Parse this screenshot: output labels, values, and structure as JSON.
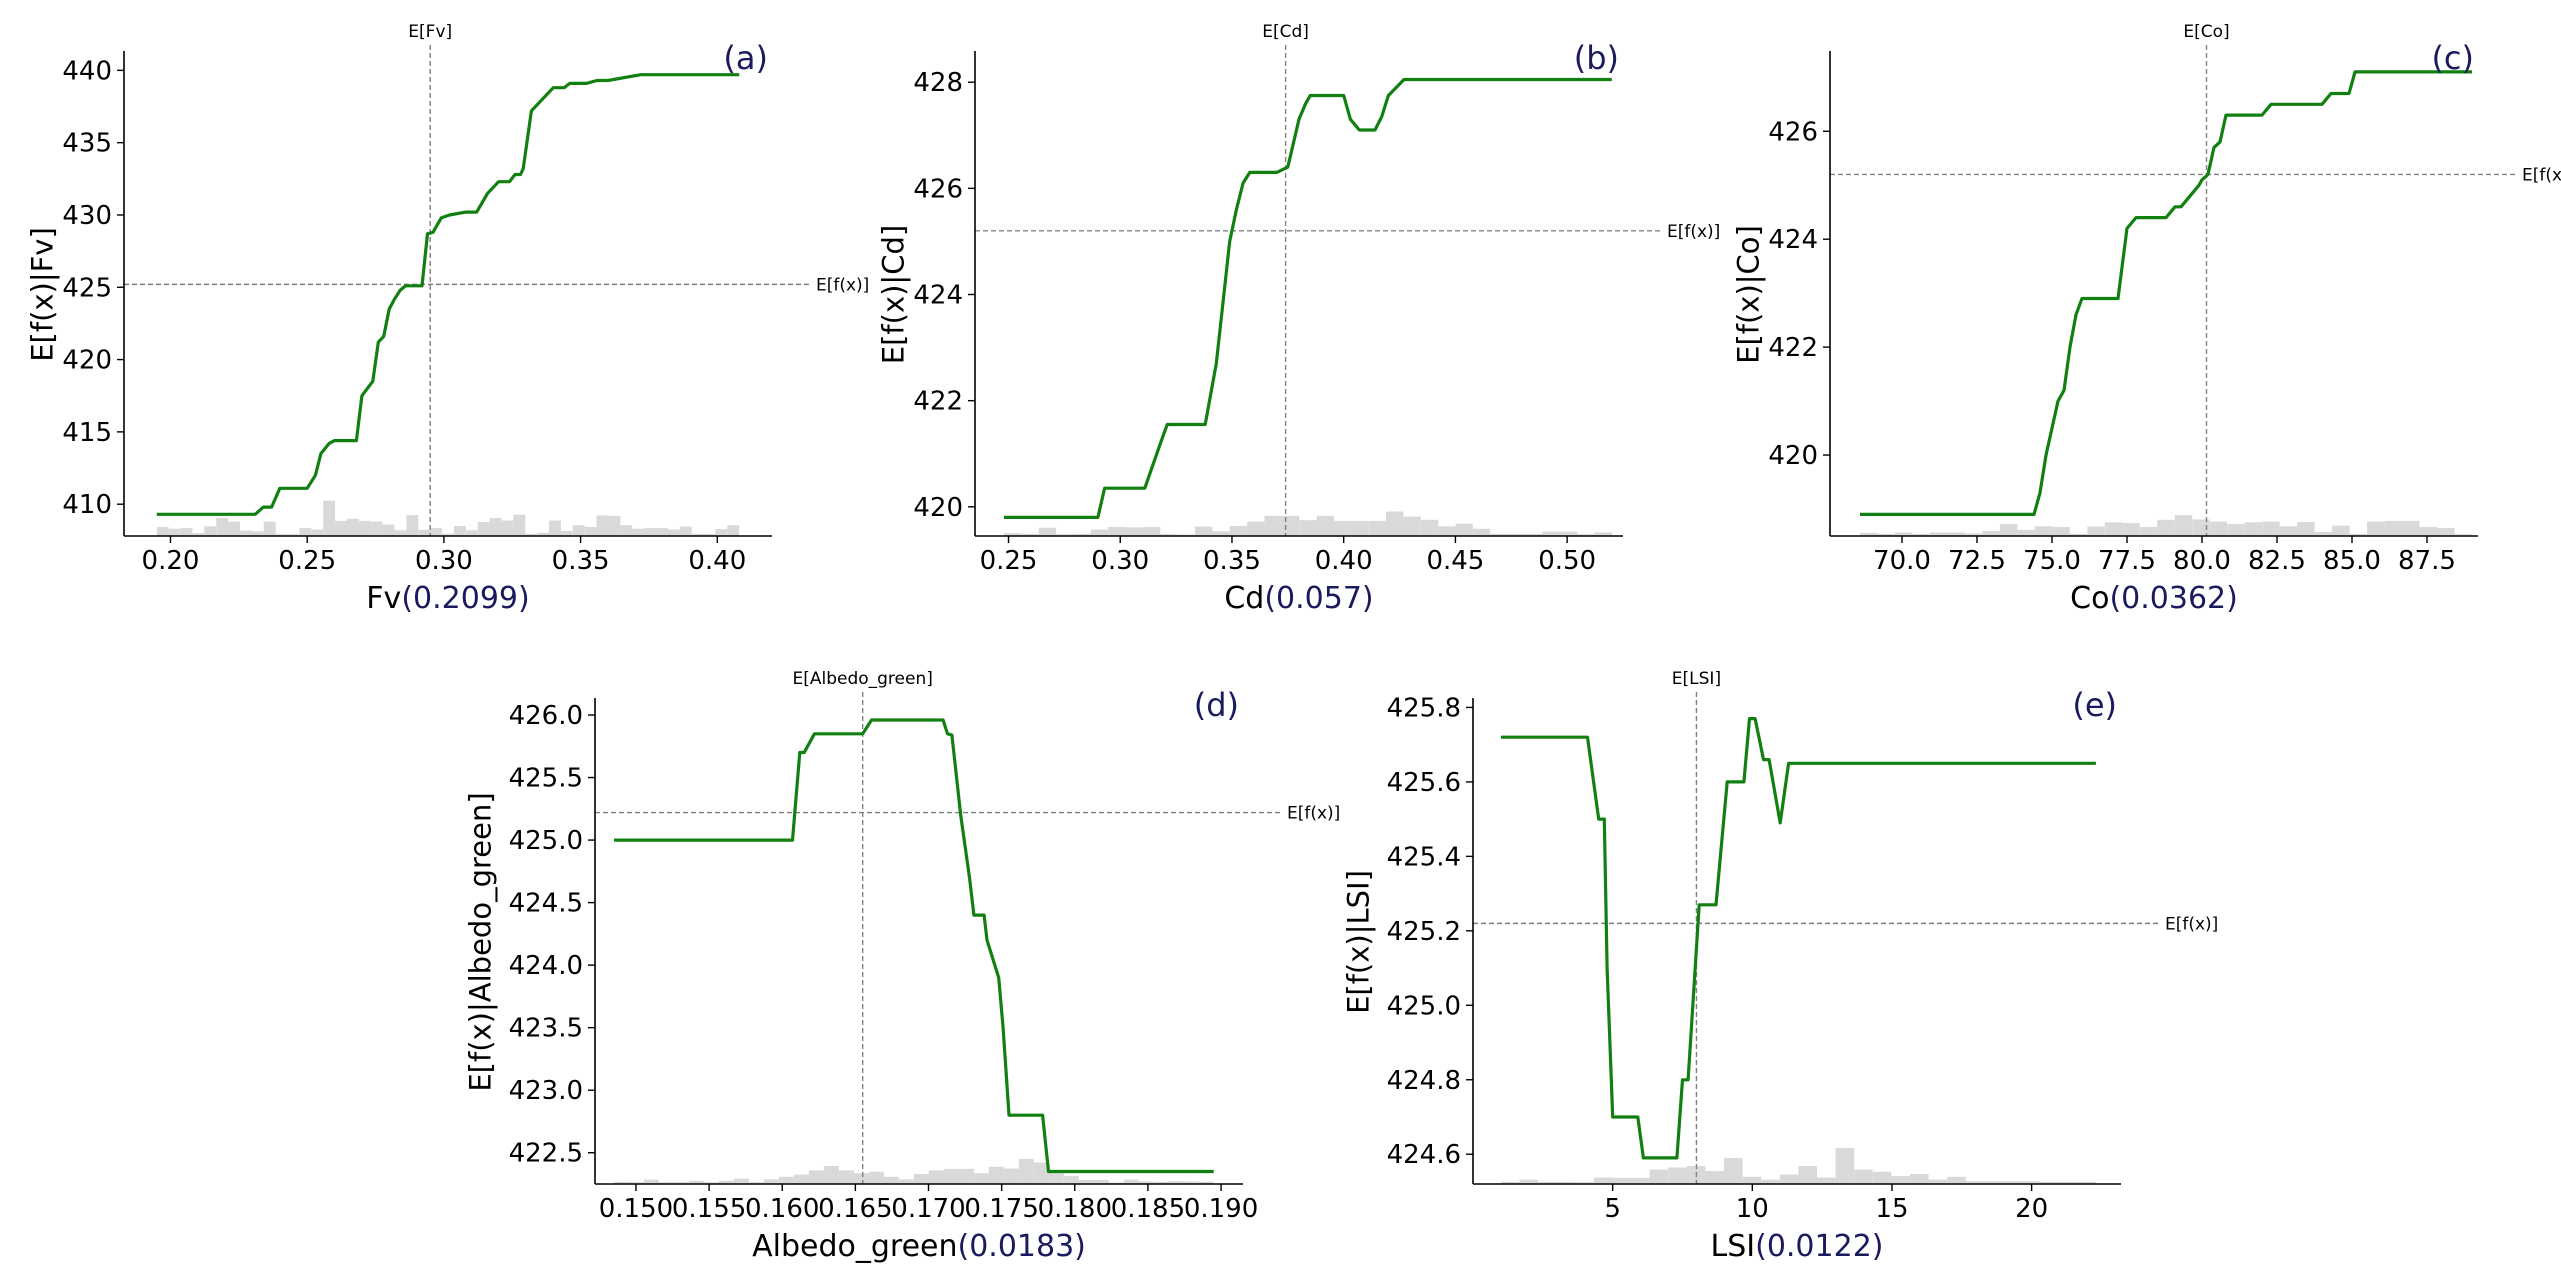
{
  "colors": {
    "line": "#118011",
    "hist": "#d9d9d9",
    "axis": "#000000",
    "ref": "#808080",
    "feature_label": "#000000",
    "importance": "#1a1a5e",
    "panel_label": "#1a1a5e"
  },
  "chart_data": [
    {
      "type": "line",
      "panel_label": "(a)",
      "feature": "Fv",
      "importance": "(0.2099)",
      "ylabel": "E[f(x)|Fv]",
      "expected_x_label": "E[Fv]",
      "expected_y_label": "E[f(x)]",
      "expected_x": 0.295,
      "expected_y": 425.2,
      "xlim": [
        0.183,
        0.42
      ],
      "ylim": [
        407.8,
        441.2
      ],
      "xticks": [
        0.2,
        0.25,
        0.3,
        0.35,
        0.4
      ],
      "xtick_labels": [
        "0.20",
        "0.25",
        "0.30",
        "0.35",
        "0.40"
      ],
      "yticks": [
        410,
        415,
        420,
        425,
        430,
        435,
        440
      ],
      "ytick_labels": [
        "410",
        "415",
        "420",
        "425",
        "430",
        "435",
        "440"
      ],
      "x": [
        0.195,
        0.231,
        0.234,
        0.237,
        0.24,
        0.25,
        0.253,
        0.255,
        0.258,
        0.26,
        0.268,
        0.27,
        0.274,
        0.276,
        0.278,
        0.28,
        0.282,
        0.284,
        0.286,
        0.292,
        0.294,
        0.296,
        0.299,
        0.302,
        0.308,
        0.312,
        0.316,
        0.32,
        0.324,
        0.326,
        0.328,
        0.329,
        0.332,
        0.336,
        0.34,
        0.344,
        0.346,
        0.352,
        0.356,
        0.36,
        0.372,
        0.408
      ],
      "values": [
        409.3,
        409.3,
        409.8,
        409.8,
        411.1,
        411.1,
        412.0,
        413.5,
        414.2,
        414.4,
        414.4,
        417.5,
        418.5,
        421.2,
        421.6,
        423.5,
        424.2,
        424.8,
        425.1,
        425.1,
        428.7,
        428.8,
        429.8,
        430.0,
        430.2,
        430.2,
        431.5,
        432.3,
        432.3,
        432.8,
        432.8,
        433.2,
        437.2,
        438.0,
        438.8,
        438.8,
        439.1,
        439.1,
        439.3,
        439.3,
        439.7,
        439.7
      ],
      "hist": [
        0.25,
        0.2,
        0.22,
        0.08,
        0.27,
        0.5,
        0.4,
        0.15,
        0.13,
        0.4,
        0.05,
        0.05,
        0.22,
        0.18,
        0.98,
        0.42,
        0.48,
        0.42,
        0.4,
        0.32,
        0.16,
        0.58,
        0.17,
        0.22,
        0.06,
        0.28,
        0.16,
        0.39,
        0.5,
        0.43,
        0.59,
        0.06,
        0.09,
        0.43,
        0.14,
        0.3,
        0.25,
        0.57,
        0.56,
        0.3,
        0.2,
        0.22,
        0.22,
        0.18,
        0.26,
        0.06,
        0.06,
        0.19,
        0.3
      ]
    },
    {
      "type": "line",
      "panel_label": "(b)",
      "feature": "Cd",
      "importance": "(0.057)",
      "ylabel": "E[f(x)|Cd]",
      "expected_x_label": "E[Cd]",
      "expected_y_label": "E[f(x)]",
      "expected_x": 0.374,
      "expected_y": 425.2,
      "xlim": [
        0.235,
        0.525
      ],
      "ylim": [
        419.45,
        428.55
      ],
      "xticks": [
        0.25,
        0.3,
        0.35,
        0.4,
        0.45,
        0.5
      ],
      "xtick_labels": [
        "0.25",
        "0.30",
        "0.35",
        "0.40",
        "0.45",
        "0.50"
      ],
      "yticks": [
        420,
        422,
        424,
        426,
        428
      ],
      "ytick_labels": [
        "420",
        "422",
        "424",
        "426",
        "428"
      ],
      "x": [
        0.248,
        0.29,
        0.293,
        0.311,
        0.318,
        0.321,
        0.338,
        0.343,
        0.349,
        0.352,
        0.355,
        0.358,
        0.362,
        0.37,
        0.375,
        0.38,
        0.383,
        0.385,
        0.4,
        0.403,
        0.407,
        0.414,
        0.417,
        0.42,
        0.427,
        0.45,
        0.52
      ],
      "values": [
        419.8,
        419.8,
        420.35,
        420.35,
        421.2,
        421.55,
        421.55,
        422.7,
        425.0,
        425.6,
        426.1,
        426.3,
        426.3,
        426.3,
        426.4,
        427.3,
        427.6,
        427.75,
        427.75,
        427.3,
        427.1,
        427.1,
        427.35,
        427.75,
        428.05,
        428.05,
        428.05
      ],
      "hist": [
        0.08,
        0.06,
        0.23,
        0.05,
        0.06,
        0.18,
        0.25,
        0.24,
        0.25,
        0.05,
        0.04,
        0.26,
        0.13,
        0.28,
        0.4,
        0.56,
        0.56,
        0.44,
        0.56,
        0.42,
        0.42,
        0.42,
        0.68,
        0.54,
        0.45,
        0.27,
        0.34,
        0.2,
        0.06,
        0.06,
        0.06,
        0.12,
        0.12,
        0.05,
        0.1
      ]
    },
    {
      "type": "line",
      "panel_label": "(c)",
      "feature": "Co",
      "importance": "(0.0362)",
      "ylabel": "E[f(x)|Co]",
      "expected_x_label": "E[Co]",
      "expected_y_label": "E[f(x)]",
      "expected_x": 80.15,
      "expected_y": 425.2,
      "xlim": [
        67.6,
        89.2
      ],
      "ylim": [
        418.5,
        427.45
      ],
      "xticks": [
        70.0,
        72.5,
        75.0,
        77.5,
        80.0,
        82.5,
        85.0,
        87.5
      ],
      "xtick_labels": [
        "70.0",
        "72.5",
        "75.0",
        "77.5",
        "80.0",
        "82.5",
        "85.0",
        "87.5"
      ],
      "yticks": [
        420,
        422,
        424,
        426
      ],
      "ytick_labels": [
        "420",
        "422",
        "424",
        "426"
      ],
      "x": [
        68.6,
        74.4,
        74.6,
        74.8,
        75.0,
        75.2,
        75.4,
        75.6,
        75.8,
        76.0,
        76.2,
        77.2,
        77.5,
        77.8,
        78.8,
        79.1,
        79.3,
        79.9,
        80.0,
        80.2,
        80.4,
        80.6,
        80.8,
        82.0,
        82.3,
        84.0,
        84.3,
        84.9,
        85.1,
        89.0
      ],
      "values": [
        418.9,
        418.9,
        419.3,
        420.0,
        420.5,
        421.0,
        421.2,
        422.0,
        422.6,
        422.9,
        422.9,
        422.9,
        424.2,
        424.4,
        424.4,
        424.6,
        424.6,
        425.0,
        425.1,
        425.2,
        425.7,
        425.8,
        426.3,
        426.3,
        426.5,
        426.5,
        426.7,
        426.7,
        427.1,
        427.1
      ],
      "hist": [
        0.09,
        0.06,
        0.1,
        0.06,
        0.1,
        0.1,
        0.07,
        0.14,
        0.33,
        0.17,
        0.27,
        0.25,
        0.06,
        0.26,
        0.38,
        0.36,
        0.25,
        0.45,
        0.58,
        0.46,
        0.4,
        0.33,
        0.38,
        0.4,
        0.27,
        0.39,
        0.11,
        0.29,
        0.06,
        0.4,
        0.42,
        0.42,
        0.25,
        0.22,
        0.05
      ]
    },
    {
      "type": "line",
      "panel_label": "(d)",
      "feature": "Albedo_green",
      "importance": "(0.0183)",
      "ylabel": "E[f(x)|Albedo_green]",
      "expected_x_label": "E[Albedo_green]",
      "expected_y_label": "E[f(x)]",
      "expected_x": 0.1655,
      "expected_y": 425.22,
      "xlim": [
        0.1472,
        0.1915
      ],
      "ylim": [
        422.25,
        426.12
      ],
      "xticks": [
        0.15,
        0.155,
        0.16,
        0.165,
        0.17,
        0.175,
        0.18,
        0.185,
        0.19
      ],
      "xtick_labels": [
        "0.150",
        "0.155",
        "0.160",
        "0.165",
        "0.170",
        "0.175",
        "0.180",
        "0.185",
        "0.190"
      ],
      "yticks": [
        422.5,
        423.0,
        423.5,
        424.0,
        424.5,
        425.0,
        425.5,
        426.0
      ],
      "ytick_labels": [
        "422.5",
        "423.0",
        "423.5",
        "424.0",
        "424.5",
        "425.0",
        "425.5",
        "426.0"
      ],
      "x": [
        0.1485,
        0.1607,
        0.1612,
        0.1615,
        0.1622,
        0.1625,
        0.1655,
        0.1661,
        0.171,
        0.1713,
        0.1716,
        0.1722,
        0.1728,
        0.1731,
        0.1738,
        0.174,
        0.1748,
        0.1751,
        0.1755,
        0.1778,
        0.1782,
        0.1895
      ],
      "values": [
        425.0,
        425.0,
        425.7,
        425.7,
        425.85,
        425.85,
        425.85,
        425.96,
        425.96,
        425.85,
        425.84,
        425.2,
        424.7,
        424.4,
        424.4,
        424.2,
        423.9,
        423.5,
        422.8,
        422.8,
        422.35,
        422.35
      ],
      "hist": [
        0.06,
        0.05,
        0.12,
        0.05,
        0.05,
        0.09,
        0.05,
        0.09,
        0.15,
        0.05,
        0.13,
        0.2,
        0.26,
        0.38,
        0.5,
        0.38,
        0.3,
        0.34,
        0.2,
        0.13,
        0.28,
        0.38,
        0.42,
        0.42,
        0.3,
        0.48,
        0.43,
        0.7,
        0.6,
        0.34,
        0.22,
        0.11,
        0.11,
        0.04,
        0.12,
        0.07,
        0.06,
        0.08,
        0.07,
        0.06
      ]
    },
    {
      "type": "line",
      "panel_label": "(e)",
      "feature": "LSI",
      "importance": "(0.0122)",
      "ylabel": "E[f(x)|LSI]",
      "expected_x_label": "E[LSI]",
      "expected_y_label": "E[f(x)]",
      "expected_x": 8.0,
      "expected_y": 425.22,
      "xlim": [
        0.0,
        23.2
      ],
      "ylim": [
        424.52,
        425.82
      ],
      "xticks": [
        5,
        10,
        15,
        20
      ],
      "xtick_labels": [
        "5",
        "10",
        "15",
        "20"
      ],
      "yticks": [
        424.6,
        424.8,
        425.0,
        425.2,
        425.4,
        425.6,
        425.8
      ],
      "ytick_labels": [
        "424.6",
        "424.8",
        "425.0",
        "425.2",
        "425.4",
        "425.6",
        "425.8"
      ],
      "x": [
        1.0,
        4.1,
        4.5,
        4.7,
        4.8,
        5.0,
        5.9,
        6.1,
        7.3,
        7.5,
        7.7,
        8.1,
        8.7,
        9.1,
        9.7,
        9.9,
        10.1,
        10.4,
        10.6,
        11.0,
        11.3,
        22.3
      ],
      "values": [
        425.72,
        425.72,
        425.5,
        425.5,
        425.1,
        424.7,
        424.7,
        424.59,
        424.59,
        424.8,
        424.8,
        425.27,
        425.27,
        425.6,
        425.6,
        425.77,
        425.77,
        425.66,
        425.66,
        425.49,
        425.65,
        425.65
      ],
      "hist": [
        0.06,
        0.12,
        0.06,
        0.06,
        0.05,
        0.18,
        0.17,
        0.17,
        0.4,
        0.46,
        0.5,
        0.36,
        0.72,
        0.2,
        0.12,
        0.26,
        0.5,
        0.18,
        1.0,
        0.4,
        0.34,
        0.22,
        0.28,
        0.12,
        0.2,
        0.08,
        0.08,
        0.08,
        0.08,
        0.06,
        0.06,
        0.06
      ]
    }
  ]
}
